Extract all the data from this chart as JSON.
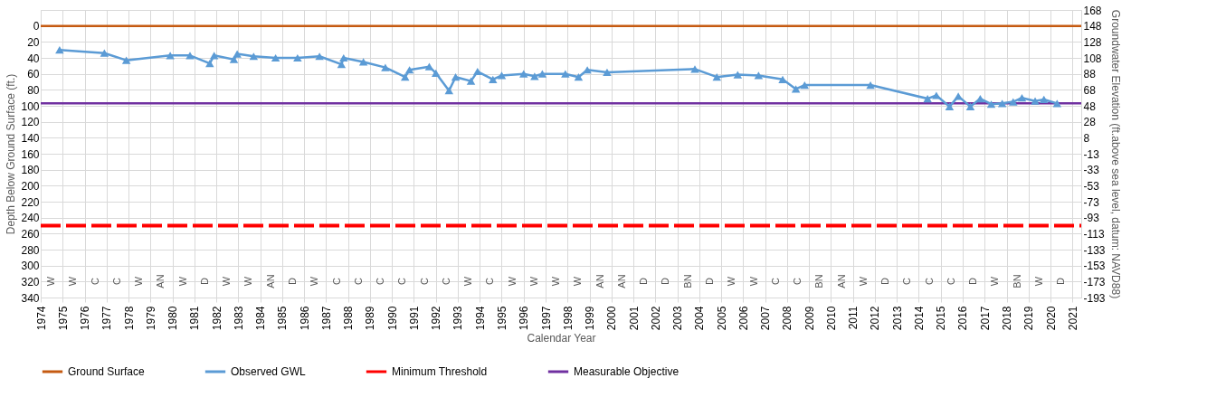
{
  "chart_data": {
    "type": "line",
    "xlabel": "Calendar Year",
    "ylabel": "Depth Below Ground Surface  (ft.)",
    "y2label": "Groundwater Elevation (ft.above sea level, datum: NAVD88)",
    "xlim": [
      1974,
      2021.4
    ],
    "xticks": [
      1974,
      1975,
      1976,
      1977,
      1978,
      1979,
      1980,
      1981,
      1982,
      1983,
      1984,
      1985,
      1986,
      1987,
      1988,
      1989,
      1990,
      1991,
      1992,
      1993,
      1994,
      1995,
      1996,
      1997,
      1998,
      1999,
      2000,
      2001,
      2002,
      2003,
      2004,
      2005,
      2006,
      2007,
      2008,
      2009,
      2010,
      2011,
      2012,
      2013,
      2014,
      2015,
      2016,
      2017,
      2018,
      2019,
      2020,
      2021
    ],
    "ylim": [
      340,
      -20
    ],
    "yticks": [
      0,
      20,
      40,
      60,
      80,
      100,
      120,
      140,
      160,
      180,
      200,
      220,
      240,
      260,
      280,
      300,
      320,
      340
    ],
    "y2lim": [
      -192.5,
      167.5
    ],
    "y2ticks": [
      {
        "value": 167.5,
        "label": "168"
      },
      {
        "value": 147.5,
        "label": "148"
      },
      {
        "value": 127.5,
        "label": "128"
      },
      {
        "value": 107.5,
        "label": "108"
      },
      {
        "value": 87.5,
        "label": "88"
      },
      {
        "value": 67.5,
        "label": "68"
      },
      {
        "value": 47.5,
        "label": "48"
      },
      {
        "value": 27.5,
        "label": "28"
      },
      {
        "value": 7.5,
        "label": "8"
      },
      {
        "value": -12.5,
        "label": "-13"
      },
      {
        "value": -32.5,
        "label": "-33"
      },
      {
        "value": -52.5,
        "label": "-53"
      },
      {
        "value": -72.5,
        "label": "-73"
      },
      {
        "value": -92.5,
        "label": "-93"
      },
      {
        "value": -112.5,
        "label": "-113"
      },
      {
        "value": -132.5,
        "label": "-133"
      },
      {
        "value": -152.5,
        "label": "-153"
      },
      {
        "value": -172.5,
        "label": "-173"
      },
      {
        "value": -192.5,
        "label": "-193"
      }
    ],
    "grid": true,
    "legend": "bottom",
    "series": [
      {
        "name": "Ground Surface",
        "color": "#c55a11",
        "line_style": "solid",
        "marker": "none",
        "x": [
          1974,
          2021.4
        ],
        "values": [
          0,
          0
        ]
      },
      {
        "name": "Observed GWL",
        "color": "#5b9bd5",
        "line_style": "solid",
        "marker": "triangle",
        "x": [
          1974.86,
          1976.9,
          1977.9,
          1979.9,
          1980.8,
          1981.7,
          1981.9,
          1982.8,
          1982.95,
          1983.7,
          1984.7,
          1985.7,
          1986.7,
          1987.7,
          1987.8,
          1988.7,
          1989.7,
          1990.6,
          1990.8,
          1991.7,
          1992.0,
          1992.6,
          1992.9,
          1993.6,
          1993.9,
          1994.6,
          1995.0,
          1996.0,
          1996.5,
          1996.85,
          1997.9,
          1998.5,
          1998.9,
          1999.8,
          2003.8,
          2004.8,
          2005.75,
          2006.7,
          2007.8,
          2008.4,
          2008.8,
          2011.8,
          2014.4,
          2014.8,
          2015.4,
          2015.8,
          2016.35,
          2016.8,
          2017.3,
          2017.8,
          2018.3,
          2018.7,
          2019.3,
          2019.7,
          2020.3
        ],
        "values": [
          30,
          34,
          43,
          37,
          37,
          47,
          37,
          42,
          35,
          38,
          40,
          40,
          38,
          48,
          40,
          45,
          52,
          64,
          55,
          51,
          59,
          81,
          64,
          69,
          57,
          67,
          62,
          60,
          63,
          60,
          60,
          64,
          55,
          58,
          54,
          64,
          61,
          62,
          67,
          79,
          74,
          74,
          91,
          87,
          101,
          88,
          101,
          91,
          98,
          97,
          95,
          90,
          94,
          92,
          97
        ]
      },
      {
        "name": "Minimum Threshold",
        "color": "#ff0000",
        "line_style": "dashed",
        "marker": "none",
        "x": [
          1974,
          2021.4
        ],
        "values": [
          250,
          250
        ]
      },
      {
        "name": "Measurable Objective",
        "color": "#7030a0",
        "line_style": "solid",
        "marker": "none",
        "x": [
          1974,
          2021.4
        ],
        "values": [
          97,
          97
        ]
      }
    ],
    "annotations": [
      "W",
      "W",
      "C",
      "C",
      "W",
      "AN",
      "W",
      "D",
      "W",
      "W",
      "AN",
      "D",
      "W",
      "C",
      "C",
      "C",
      "C",
      "C",
      "C",
      "W",
      "C",
      "W",
      "W",
      "W",
      "W",
      "AN",
      "AN",
      "D",
      "D",
      "BN",
      "D",
      "W",
      "W",
      "C",
      "C",
      "BN",
      "AN",
      "W",
      "D",
      "C",
      "C",
      "C",
      "D",
      "W",
      "BN",
      "W",
      "D"
    ]
  }
}
